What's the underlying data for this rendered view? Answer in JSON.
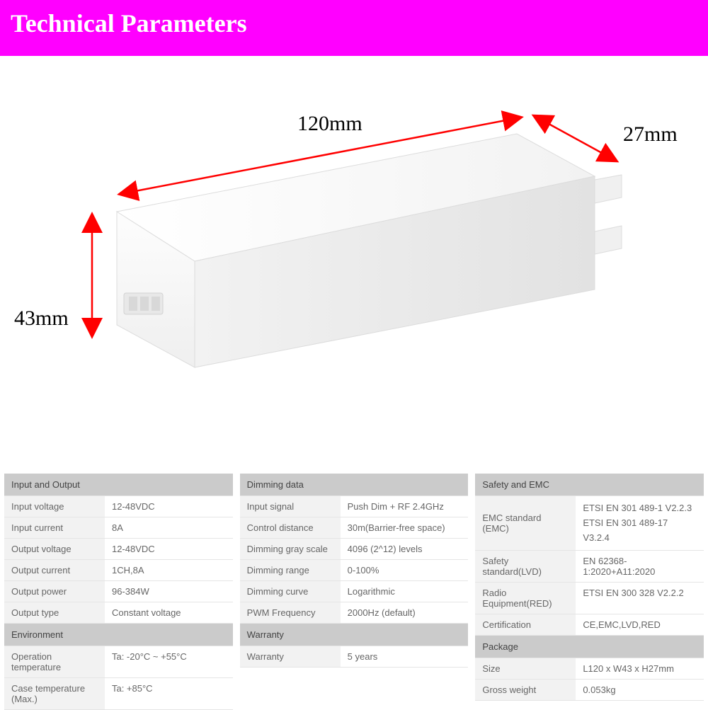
{
  "header": {
    "title": "Technical Parameters"
  },
  "diagram": {
    "dim_length": "120mm",
    "dim_depth": "27mm",
    "dim_height": "43mm",
    "arrow_color": "#ff0000",
    "label_color": "#000000",
    "label_font_family": "Times New Roman, serif",
    "label_font_size": 30,
    "device_face": "#f6f6f6",
    "device_side": "#eaeaea",
    "device_top": "#fafafa",
    "device_edge": "#dcdcdc"
  },
  "tables": {
    "col1": {
      "section1": {
        "title": "Input and Output",
        "rows": [
          {
            "label": "Input voltage",
            "value": "12-48VDC"
          },
          {
            "label": "Input current",
            "value": "8A"
          },
          {
            "label": "Output voltage",
            "value": "12-48VDC"
          },
          {
            "label": "Output current",
            "value": "1CH,8A"
          },
          {
            "label": "Output power",
            "value": "96-384W"
          },
          {
            "label": "Output type",
            "value": "Constant voltage"
          }
        ]
      },
      "section2": {
        "title": "Environment",
        "rows": [
          {
            "label": "Operation temperature",
            "value": "Ta: -20°C ~ +55°C"
          },
          {
            "label": "Case temperature (Max.)",
            "value": "Ta: +85°C"
          }
        ]
      }
    },
    "col2": {
      "section1": {
        "title": "Dimming data",
        "rows": [
          {
            "label": "Input signal",
            "value": "Push Dim + RF 2.4GHz"
          },
          {
            "label": "Control distance",
            "value": "30m(Barrier-free space)"
          },
          {
            "label": "Dimming gray scale",
            "value": "4096 (2^12) levels"
          },
          {
            "label": "Dimming range",
            "value": "0-100%"
          },
          {
            "label": "Dimming curve",
            "value": "Logarithmic"
          },
          {
            "label": "PWM Frequency",
            "value": "2000Hz (default)"
          }
        ]
      },
      "section2": {
        "title": "Warranty",
        "rows": [
          {
            "label": "Warranty",
            "value": "5 years"
          }
        ]
      }
    },
    "col3": {
      "section1": {
        "title": "Safety and EMC",
        "rows": [
          {
            "label": "EMC standard (EMC)",
            "value": "ETSI EN 301 489-1 V2.2.3\nETSI EN 301 489-17 V3.2.4",
            "tall": true
          },
          {
            "label": "Safety standard(LVD)",
            "value": "EN 62368-1:2020+A11:2020"
          },
          {
            "label": "Radio Equipment(RED)",
            "value": "ETSI EN 300 328 V2.2.2"
          },
          {
            "label": "Certification",
            "value": "CE,EMC,LVD,RED"
          }
        ]
      },
      "section2": {
        "title": "Package",
        "rows": [
          {
            "label": "Size",
            "value": "L120 x W43 x H27mm"
          },
          {
            "label": "Gross weight",
            "value": "0.053kg"
          }
        ]
      }
    }
  }
}
